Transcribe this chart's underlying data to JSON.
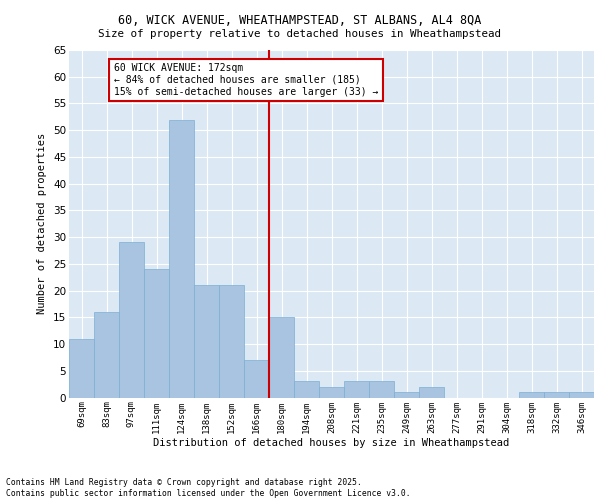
{
  "title1": "60, WICK AVENUE, WHEATHAMPSTEAD, ST ALBANS, AL4 8QA",
  "title2": "Size of property relative to detached houses in Wheathampstead",
  "xlabel": "Distribution of detached houses by size in Wheathampstead",
  "ylabel": "Number of detached properties",
  "bin_labels": [
    "69sqm",
    "83sqm",
    "97sqm",
    "111sqm",
    "124sqm",
    "138sqm",
    "152sqm",
    "166sqm",
    "180sqm",
    "194sqm",
    "208sqm",
    "221sqm",
    "235sqm",
    "249sqm",
    "263sqm",
    "277sqm",
    "291sqm",
    "304sqm",
    "318sqm",
    "332sqm",
    "346sqm"
  ],
  "bar_heights": [
    11,
    16,
    29,
    24,
    52,
    21,
    21,
    7,
    15,
    3,
    2,
    3,
    3,
    1,
    2,
    0,
    0,
    0,
    1,
    1,
    1
  ],
  "bar_color": "#a8c4e0",
  "bar_edgecolor": "#7bafd4",
  "vline_x": 7.5,
  "vline_color": "#cc0000",
  "annotation_text": "60 WICK AVENUE: 172sqm\n← 84% of detached houses are smaller (185)\n15% of semi-detached houses are larger (33) →",
  "annotation_box_color": "#cc0000",
  "ylim": [
    0,
    65
  ],
  "yticks": [
    0,
    5,
    10,
    15,
    20,
    25,
    30,
    35,
    40,
    45,
    50,
    55,
    60,
    65
  ],
  "background_color": "#dce9f5",
  "footer1": "Contains HM Land Registry data © Crown copyright and database right 2025.",
  "footer2": "Contains public sector information licensed under the Open Government Licence v3.0."
}
